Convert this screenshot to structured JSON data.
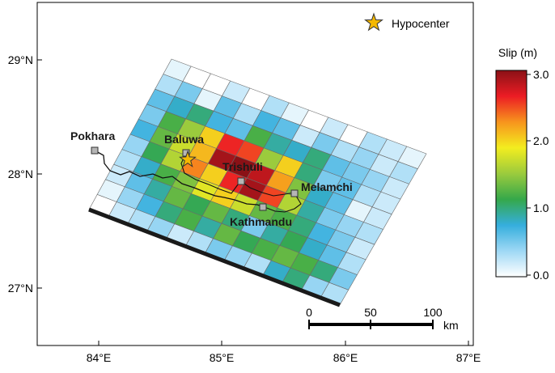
{
  "map": {
    "lon_ticks": [
      "84°E",
      "85°E",
      "86°E",
      "87°E"
    ],
    "lat_ticks": [
      "29°N",
      "28°N",
      "27°N"
    ],
    "legend": {
      "hypocenter_label": "Hypocenter",
      "hypocenter_icon": "star-icon"
    },
    "colorbar": {
      "title": "Slip (m)",
      "ticks": [
        "3.0",
        "2.0",
        "1.0",
        "0.0"
      ],
      "stops": [
        "#ffffff",
        "#9ed8f5",
        "#35aedd",
        "#35a84a",
        "#9bcb3d",
        "#f3ed1f",
        "#f7941d",
        "#ec1c24",
        "#8a1116"
      ]
    },
    "scale_bar": {
      "ticks": [
        "0",
        "50",
        "100"
      ],
      "unit": "km"
    },
    "cities": [
      {
        "name": "Pokhara"
      },
      {
        "name": "Baluwa"
      },
      {
        "name": "Trishuli"
      },
      {
        "name": "Melamchi"
      },
      {
        "name": "Kathmandu"
      }
    ],
    "slip_grid": {
      "rows": 10,
      "cols": 13,
      "values": [
        [
          0.1,
          0.0,
          0.0,
          0.2,
          0.0,
          0.3,
          0.1,
          0.0,
          0.2,
          0.0,
          0.3,
          0.2,
          0.1
        ],
        [
          0.3,
          0.5,
          0.1,
          0.6,
          0.3,
          0.7,
          0.6,
          0.2,
          0.5,
          0.3,
          0.4,
          0.2,
          0.3
        ],
        [
          0.6,
          0.8,
          1.0,
          0.7,
          0.6,
          1.2,
          0.9,
          0.8,
          1.0,
          0.6,
          0.5,
          0.4,
          0.2
        ],
        [
          0.5,
          1.2,
          1.5,
          2.0,
          2.6,
          2.5,
          1.5,
          2.0,
          1.0,
          0.5,
          0.6,
          0.3,
          0.2
        ],
        [
          0.7,
          1.3,
          1.7,
          2.1,
          2.9,
          3.0,
          2.8,
          2.2,
          1.4,
          0.8,
          0.6,
          0.1,
          0.2
        ],
        [
          0.4,
          1.1,
          1.6,
          2.3,
          2.0,
          2.6,
          2.9,
          2.5,
          1.6,
          0.9,
          0.5,
          0.4,
          0.3
        ],
        [
          0.3,
          0.8,
          1.2,
          1.4,
          1.8,
          2.0,
          1.7,
          1.3,
          1.2,
          1.0,
          0.7,
          0.5,
          0.2
        ],
        [
          0.2,
          0.6,
          0.9,
          1.3,
          1.1,
          1.3,
          1.0,
          0.5,
          0.9,
          1.1,
          0.8,
          0.6,
          0.3
        ],
        [
          0.1,
          0.4,
          0.7,
          1.0,
          1.2,
          0.9,
          1.3,
          1.1,
          1.2,
          1.3,
          1.2,
          1.0,
          0.5
        ],
        [
          0.0,
          0.2,
          0.3,
          0.4,
          0.2,
          0.3,
          0.5,
          0.4,
          0.3,
          0.8,
          1.0,
          0.4,
          0.3
        ]
      ]
    }
  }
}
